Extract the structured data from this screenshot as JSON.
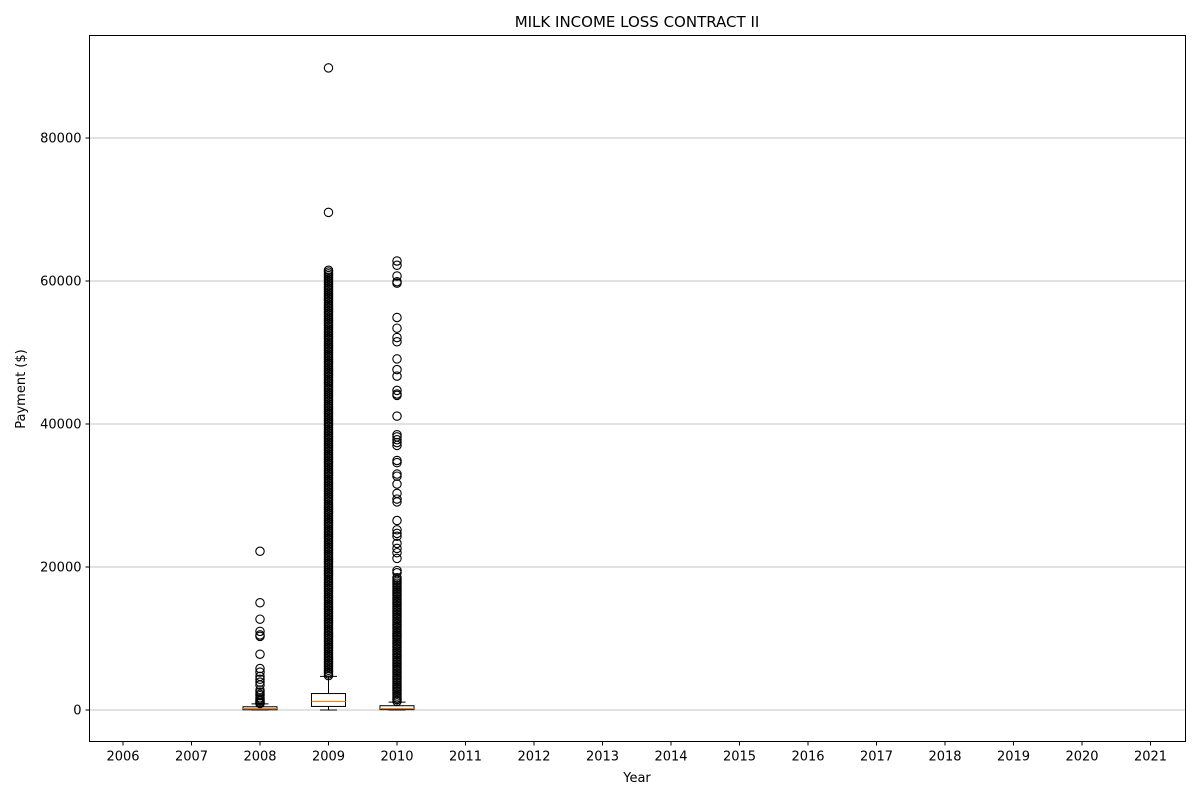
{
  "chart_data": {
    "type": "box",
    "title": "MILK INCOME LOSS CONTRACT II",
    "xlabel": "Year",
    "ylabel": "Payment ($)",
    "categories": [
      "2006",
      "2007",
      "2008",
      "2009",
      "2010",
      "2011",
      "2012",
      "2013",
      "2014",
      "2015",
      "2016",
      "2017",
      "2018",
      "2019",
      "2020",
      "2021"
    ],
    "ylim": [
      -4500,
      94500
    ],
    "yticks": [
      0,
      20000,
      40000,
      60000,
      80000
    ],
    "grid": "y",
    "boxes": [
      {
        "category": "2008",
        "whisker_low": 0,
        "q1": 30,
        "median": 200,
        "q3": 450,
        "whisker_high": 850,
        "fliers": [
          22200,
          15000,
          12700,
          11000,
          10300,
          10500,
          7800,
          5800,
          5300,
          4700,
          4300,
          3900,
          3500,
          2800,
          2500,
          2200,
          2000,
          1700,
          1500,
          1300,
          1100,
          1000,
          900
        ]
      },
      {
        "category": "2009",
        "whisker_low": 0,
        "q1": 500,
        "median": 1200,
        "q3": 2300,
        "whisker_high": 4700,
        "dense_flier_range": [
          4800,
          61500
        ],
        "fliers": [
          89800,
          69600
        ]
      },
      {
        "category": "2010",
        "whisker_low": 0,
        "q1": 50,
        "median": 200,
        "q3": 600,
        "whisker_high": 1100,
        "dense_flier_range": [
          1200,
          18500
        ],
        "fliers": [
          62800,
          62200,
          60700,
          59900,
          59700,
          54900,
          53400,
          52100,
          51500,
          49100,
          47600,
          46700,
          44700,
          44200,
          44000,
          41100,
          38500,
          38200,
          37800,
          37400,
          37000,
          34900,
          34600,
          33000,
          32700,
          31600,
          30300,
          29500,
          29100,
          26500,
          25200,
          24700,
          24300,
          23300,
          22600,
          22000,
          21200,
          19500,
          19200
        ]
      }
    ]
  }
}
